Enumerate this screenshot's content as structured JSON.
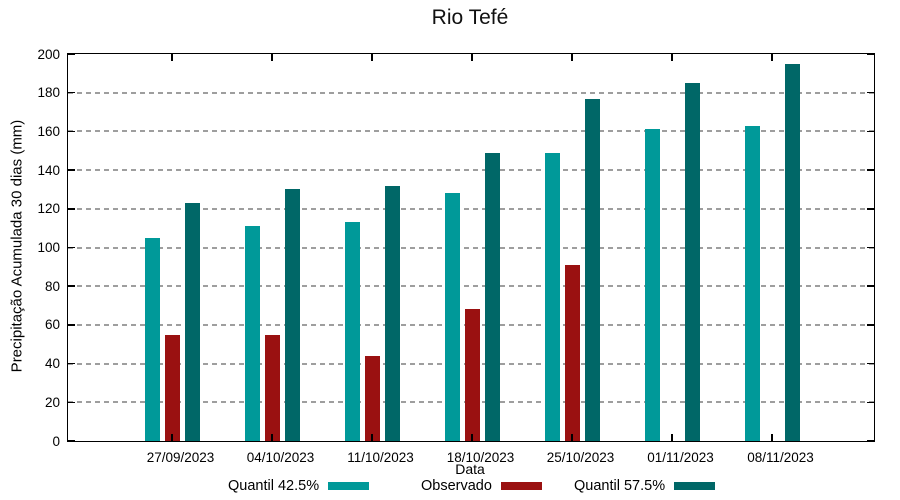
{
  "chart_data": {
    "type": "bar",
    "title": "Rio Tefé",
    "xlabel": "Data",
    "ylabel": "Precipitação Acumulada 30 dias (mm)",
    "ylim": [
      0,
      200
    ],
    "yticks": [
      0,
      20,
      40,
      60,
      80,
      100,
      120,
      140,
      160,
      180,
      200
    ],
    "grid": true,
    "legend_position": "bottom",
    "categories": [
      "27/09/2023",
      "04/10/2023",
      "11/10/2023",
      "18/10/2023",
      "25/10/2023",
      "01/11/2023",
      "08/11/2023"
    ],
    "series": [
      {
        "name": "Quantil 42.5%",
        "color": "#009999",
        "values": [
          105,
          111,
          113,
          128,
          149,
          161,
          163
        ]
      },
      {
        "name": "Observado",
        "color": "#9a1111",
        "values": [
          55,
          55,
          44,
          68,
          91,
          null,
          null
        ]
      },
      {
        "name": "Quantil 57.5%",
        "color": "#006767",
        "values": [
          123,
          130,
          132,
          149,
          177,
          185,
          195
        ]
      }
    ]
  }
}
